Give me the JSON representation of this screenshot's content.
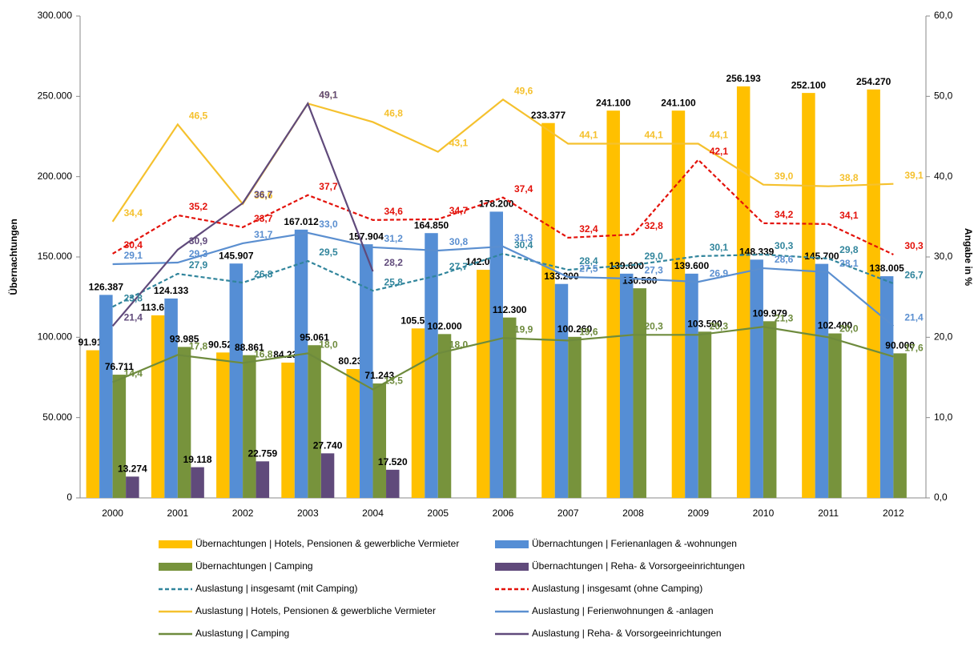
{
  "chart_data": {
    "type": "bar",
    "y_label": "Übernachtungen",
    "y2_label": "Angabe in %",
    "categories": [
      "2000",
      "2001",
      "2002",
      "2003",
      "2004",
      "2005",
      "2006",
      "2007",
      "2008",
      "2009",
      "2010",
      "2011",
      "2012"
    ],
    "ylim": [
      0,
      300000
    ],
    "yticks": [
      0,
      {
        "value": 50000,
        "label": "50.000"
      },
      {
        "value": 100000,
        "label": "100.000"
      },
      {
        "value": 150000,
        "label": "150.000"
      },
      {
        "value": 200000,
        "label": "200.000"
      },
      {
        "value": 250000,
        "label": "250.000"
      },
      {
        "value": 300000,
        "label": "300.000"
      }
    ],
    "y2lim": [
      0,
      60
    ],
    "y2ticks": [
      {
        "value": 0,
        "label": "0,0"
      },
      {
        "value": 10,
        "label": "10,0"
      },
      {
        "value": 20,
        "label": "20,0"
      },
      {
        "value": 30,
        "label": "30,0"
      },
      {
        "value": 40,
        "label": "40,0"
      },
      {
        "value": 50,
        "label": "50,0"
      },
      {
        "value": 60,
        "label": "60,0"
      }
    ],
    "legend": "bottom",
    "series": [
      {
        "name": "Übernachtungen | Hotels, Pensionen & gewerbliche Vermieter",
        "type": "bar",
        "color": "#FFC000",
        "values": [
          91916,
          113666,
          90525,
          84235,
          80231,
          105500,
          142000,
          233377,
          241100,
          241100,
          256193,
          252100,
          254270
        ],
        "value_labels": [
          "91.916",
          "113.666",
          "90.525",
          "84.235",
          "80.231",
          "105.500",
          "142.000",
          "233.377",
          "241.100",
          "241.100",
          "256.193",
          "252.100",
          "254.270"
        ]
      },
      {
        "name": "Übernachtungen | Ferienanlagen & -wohnungen",
        "type": "bar",
        "color": "#558ED5",
        "values": [
          126387,
          124133,
          145907,
          167012,
          157904,
          164850,
          178200,
          133200,
          139600,
          139600,
          148339,
          145700,
          138005
        ],
        "value_labels": [
          "126.387",
          "124.133",
          "145.907",
          "167.012",
          "157.904",
          "164.850",
          "178.200",
          "133.200",
          "139.600",
          "139.600",
          "148.339",
          "145.700",
          "138.005"
        ]
      },
      {
        "name": "Übernachtungen | Camping",
        "type": "bar",
        "color": "#77933C",
        "values": [
          76711,
          93985,
          88861,
          95061,
          71243,
          102000,
          112300,
          100260,
          130500,
          103500,
          109979,
          102400,
          90000
        ],
        "value_labels": [
          "76.711",
          "93.985",
          "88.861",
          "95.061",
          "71.243",
          "102.000",
          "112.300",
          "100.260",
          "130.500",
          "103.500",
          "109.979",
          "102.400",
          "90.000"
        ]
      },
      {
        "name": "Übernachtungen | Reha- & Vorsorgeeinrichtungen",
        "type": "bar",
        "color": "#604A7B",
        "values": [
          13274,
          19118,
          22759,
          27740,
          17520,
          null,
          null,
          null,
          null,
          null,
          null,
          null,
          null
        ],
        "value_labels": [
          "13.274",
          "19.118",
          "22.759",
          "27.740",
          "17.520",
          null,
          null,
          null,
          null,
          null,
          null,
          null,
          null
        ]
      },
      {
        "name": "Auslastung | insgesamt (mit Camping)",
        "type": "line",
        "axis": "y2",
        "dashed": true,
        "color": "#31859C",
        "values": [
          23.8,
          27.9,
          26.8,
          29.5,
          25.8,
          27.7,
          30.4,
          28.4,
          29.0,
          30.1,
          30.3,
          29.8,
          26.7
        ],
        "value_labels": [
          "23,8",
          "27,9",
          "26,8",
          "29,5",
          "25,8",
          "27,7",
          "30,4",
          "28,4",
          "29,0",
          "30,1",
          "30,3",
          "29,8",
          "26,7"
        ]
      },
      {
        "name": "Auslastung | insgesamt (ohne Camping)",
        "type": "line",
        "axis": "y2",
        "dashed": true,
        "color": "#E3120B",
        "values": [
          30.4,
          35.2,
          33.7,
          37.7,
          34.6,
          34.7,
          37.4,
          32.4,
          32.8,
          42.1,
          34.2,
          34.1,
          30.3
        ],
        "value_labels": [
          "30,4",
          "35,2",
          "33,7",
          "37,7",
          "34,6",
          "34,7",
          "37,4",
          "32,4",
          "32,8",
          "42,1",
          "34,2",
          "34,1",
          "30,3"
        ]
      },
      {
        "name": "Auslastung | Hotels, Pensionen & gewerbliche Vermieter",
        "type": "line",
        "axis": "y2",
        "color": "#F5C12E",
        "values": [
          34.4,
          46.5,
          36.6,
          49.1,
          46.8,
          43.1,
          49.6,
          44.1,
          44.1,
          44.1,
          39.0,
          38.8,
          39.1
        ],
        "value_labels": [
          "34,4",
          "46,5",
          "36,6",
          "49,1",
          "46,8",
          "43,1",
          "49,6",
          "44,1",
          "44,1",
          "44,1",
          "39,0",
          "38,8",
          "39,1"
        ]
      },
      {
        "name": "Auslastung | Ferienwohnungen & -anlagen",
        "type": "line",
        "axis": "y2",
        "color": "#5B8FD0",
        "values": [
          29.1,
          29.3,
          31.7,
          33.0,
          31.2,
          30.8,
          31.3,
          27.5,
          27.3,
          26.9,
          28.6,
          28.1,
          21.4
        ],
        "value_labels": [
          "29,1",
          "29,3",
          "31,7",
          "33,0",
          "31,2",
          "30,8",
          "31,3",
          "27,5",
          "27,3",
          "26,9",
          "28,6",
          "28,1",
          "21,4"
        ]
      },
      {
        "name": "Auslastung | Camping",
        "type": "line",
        "axis": "y2",
        "color": "#6E8B3D",
        "values": [
          14.4,
          17.8,
          16.8,
          18.0,
          13.5,
          18.0,
          19.9,
          19.6,
          20.3,
          20.3,
          21.3,
          20.0,
          17.6
        ],
        "value_labels": [
          "14,4",
          "17,8",
          "16,8",
          "18,0",
          "13,5",
          "18,0",
          "19,9",
          "19,6",
          "20,3",
          "20,3",
          "21,3",
          "20,0",
          "17,6"
        ]
      },
      {
        "name": "Auslastung | Reha- & Vorsorgeeinrichtungen",
        "type": "line",
        "axis": "y2",
        "color": "#604A7B",
        "values": [
          21.4,
          30.9,
          36.7,
          49.1,
          28.2,
          null,
          null,
          null,
          null,
          null,
          null,
          null,
          null
        ],
        "value_labels": [
          "21,4",
          "30,9",
          "36,7",
          "49,1",
          "28,2",
          null,
          null,
          null,
          null,
          null,
          null,
          null,
          null
        ]
      }
    ]
  }
}
